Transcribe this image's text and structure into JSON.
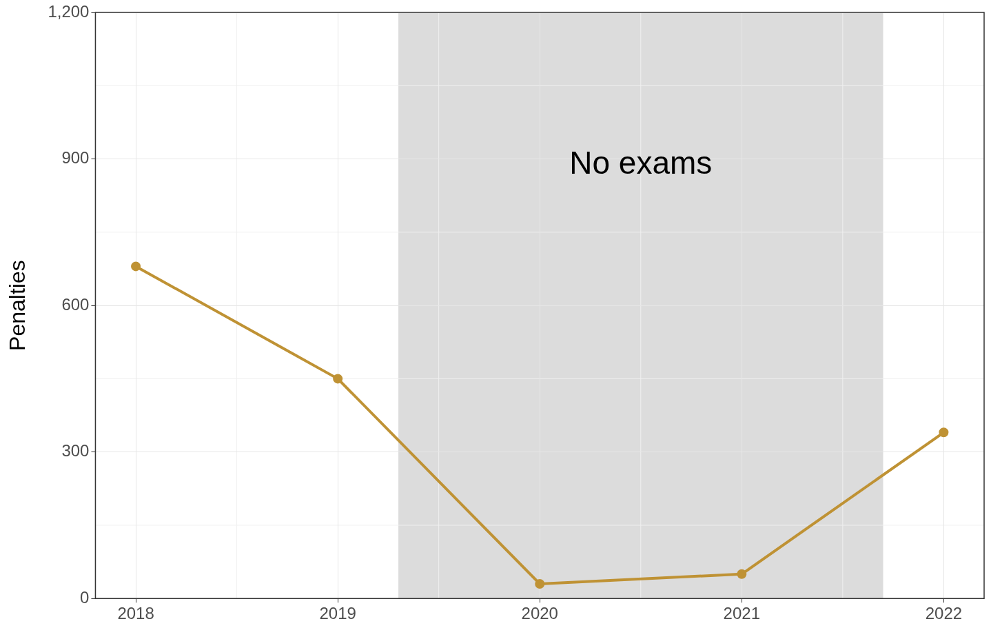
{
  "chart_data": {
    "type": "line",
    "ylabel": "Penalties",
    "x": [
      2018,
      2019,
      2020,
      2021,
      2022
    ],
    "series": [
      {
        "color": "#bf9234",
        "values": [
          680,
          450,
          30,
          50,
          340
        ]
      }
    ],
    "xlim": [
      2017.8,
      2022.2
    ],
    "xticks": [
      2018,
      2019,
      2020,
      2021,
      2022
    ],
    "ylim": [
      0,
      1200
    ],
    "yticks": [
      0,
      300,
      600,
      900,
      {
        "value": 1200,
        "label": "1,200"
      }
    ],
    "grid": true,
    "legend": false,
    "marker": "circle",
    "line_style": "solid",
    "bands": [
      {
        "axis": "x",
        "from": 2019.3,
        "to": 2021.7,
        "label": "No exams",
        "color": "#dcdcdc"
      }
    ]
  }
}
